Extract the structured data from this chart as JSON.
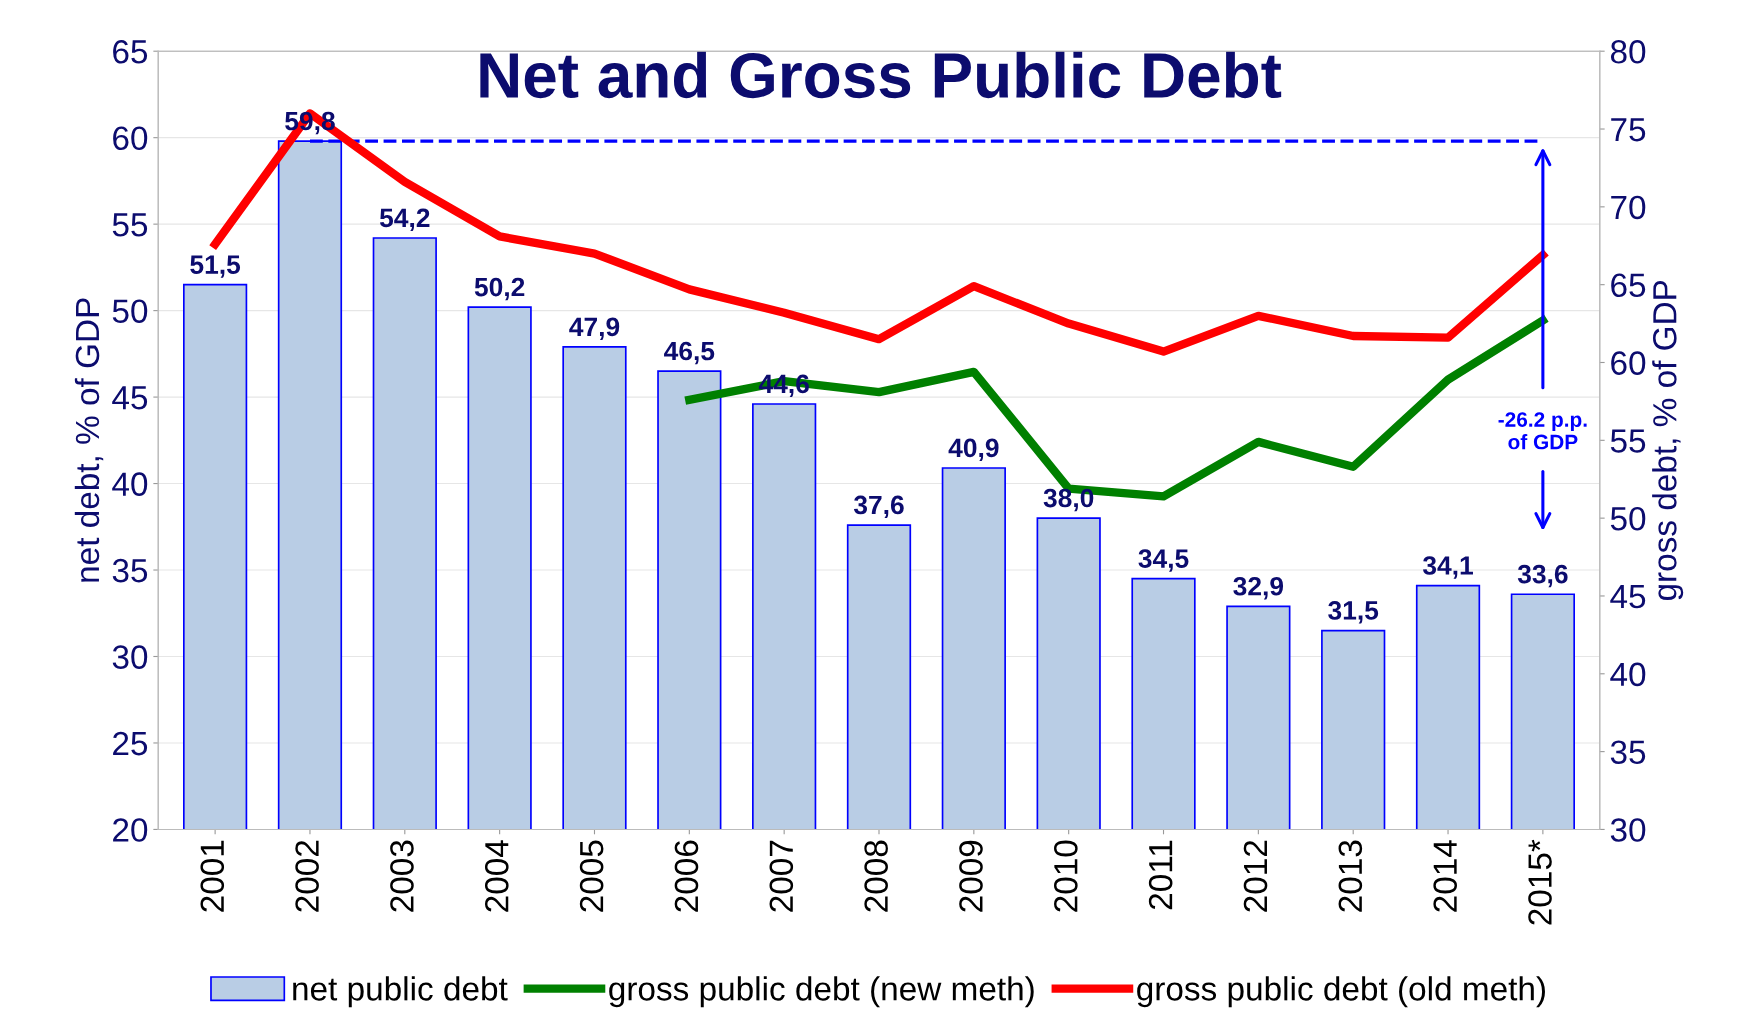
{
  "chart_data": {
    "type": "bar",
    "title": "Net and Gross Public Debt",
    "ylabel": "net debt, % of GDP",
    "y2label": "gross debt, % of GDP",
    "categories": [
      "2001",
      "2002",
      "2003",
      "2004",
      "2005",
      "2006",
      "2007",
      "2008",
      "2009",
      "2010",
      "2011",
      "2012",
      "2013",
      "2014",
      "2015*"
    ],
    "series": [
      {
        "name": "net public debt",
        "color": "#b9cde5",
        "values": [
          51.5,
          59.8,
          54.2,
          50.2,
          47.9,
          46.5,
          44.6,
          37.6,
          40.9,
          38.0,
          34.5,
          32.9,
          31.5,
          34.1,
          33.6
        ],
        "value_labels": [
          "51,5",
          "59,8",
          "54,2",
          "50,2",
          "47,9",
          "46,5",
          "44,6",
          "37,6",
          "40,9",
          "38,0",
          "34,5",
          "32,9",
          "31,5",
          "34,1",
          "33,6"
        ]
      },
      {
        "name": "gross public debt (new meth)",
        "type": "line",
        "axis": "y2",
        "color": "#008000",
        "values": [
          null,
          null,
          null,
          null,
          null,
          57.6,
          58.8,
          58.1,
          59.4,
          51.9,
          51.4,
          54.9,
          53.3,
          58.9,
          62.7
        ]
      },
      {
        "name": "gross public debt (old meth)",
        "type": "line",
        "axis": "y2",
        "color": "#ff0000",
        "values": [
          67.6,
          76.0,
          71.6,
          68.1,
          67.0,
          64.7,
          63.2,
          61.5,
          64.9,
          62.5,
          60.7,
          63.0,
          61.7,
          61.6,
          66.9
        ]
      }
    ],
    "ylim": [
      20,
      65
    ],
    "yticks": [
      20,
      25,
      30,
      35,
      40,
      45,
      50,
      55,
      60,
      65
    ],
    "y2lim": [
      30,
      80
    ],
    "y2ticks": [
      30,
      35,
      40,
      45,
      50,
      55,
      60,
      65,
      70,
      75,
      80
    ],
    "ref_lines": [
      {
        "axis": "y",
        "value": 59.8,
        "color": "#0000ff",
        "line_style": "dashed"
      }
    ],
    "annotations": [
      "-26.2 p.p.\nof GDP"
    ],
    "grid": "y",
    "legend": "bottom"
  }
}
